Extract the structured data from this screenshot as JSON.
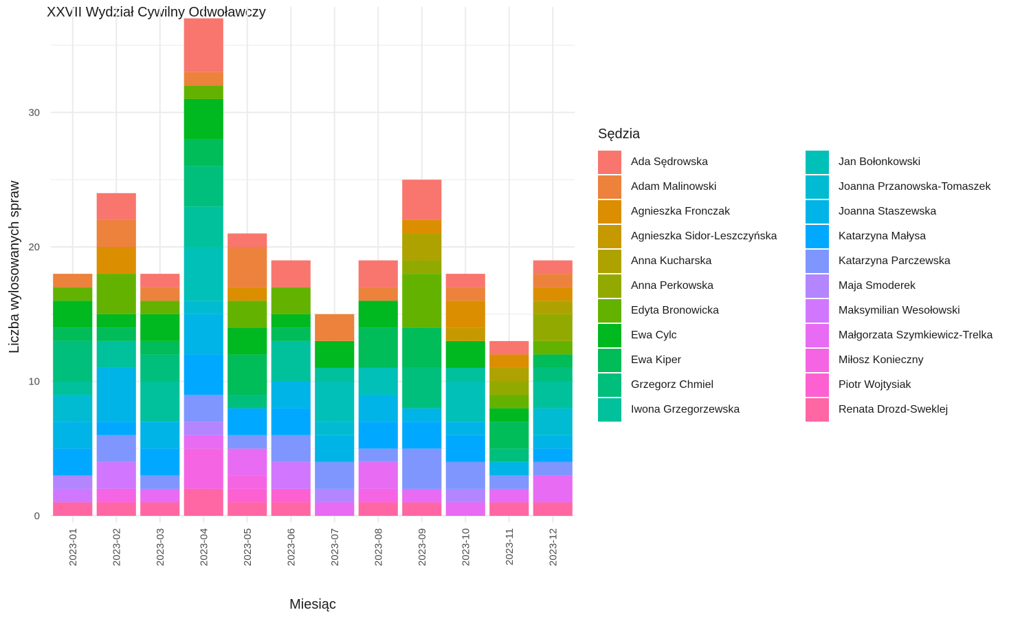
{
  "chart_data": {
    "type": "bar",
    "stacked": true,
    "title": "XXVII Wydział Cywilny Odwoławczy",
    "xlabel": "Miesiąc",
    "ylabel": "Liczba wylosowanych spraw",
    "ylim": [
      0,
      37
    ],
    "yticks": [
      0,
      10,
      20,
      30
    ],
    "grid": true,
    "legend_title": "Sędzia",
    "legend_position": "right",
    "categories": [
      "2023-01",
      "2023-02",
      "2023-03",
      "2023-04",
      "2023-05",
      "2023-06",
      "2023-07",
      "2023-08",
      "2023-09",
      "2023-10",
      "2023-11",
      "2023-12"
    ],
    "series": [
      {
        "name": "Ada Sędrowska",
        "color": "#F8766D",
        "values": [
          0,
          2,
          1,
          4,
          1,
          2,
          0,
          2,
          3,
          1,
          1,
          1
        ]
      },
      {
        "name": "Adam Malinowski",
        "color": "#EC823C",
        "values": [
          1,
          2,
          1,
          1,
          3,
          0,
          2,
          1,
          0,
          1,
          0,
          1
        ]
      },
      {
        "name": "Agnieszka Fronczak",
        "color": "#DB8E00",
        "values": [
          0,
          2,
          0,
          0,
          1,
          0,
          0,
          0,
          1,
          2,
          1,
          1
        ]
      },
      {
        "name": "Agnieszka Sidor-Leszczyńska",
        "color": "#C69900",
        "values": [
          0,
          0,
          0,
          0,
          0,
          0,
          0,
          0,
          0,
          1,
          0,
          0
        ]
      },
      {
        "name": "Anna Kucharska",
        "color": "#AEA200",
        "values": [
          0,
          0,
          0,
          0,
          0,
          0,
          0,
          0,
          2,
          0,
          1,
          1
        ]
      },
      {
        "name": "Anna Perkowska",
        "color": "#92AA00",
        "values": [
          0,
          0,
          0,
          0,
          0,
          0,
          0,
          0,
          1,
          0,
          1,
          2
        ]
      },
      {
        "name": "Edyta Bronowicka",
        "color": "#64B200",
        "values": [
          1,
          3,
          1,
          1,
          2,
          2,
          0,
          0,
          4,
          0,
          1,
          1
        ]
      },
      {
        "name": "Ewa Cylc",
        "color": "#00B81F",
        "values": [
          2,
          1,
          2,
          3,
          2,
          1,
          2,
          2,
          0,
          2,
          1,
          0
        ]
      },
      {
        "name": "Ewa Kiper",
        "color": "#00BC59",
        "values": [
          1,
          1,
          1,
          2,
          3,
          1,
          0,
          3,
          3,
          0,
          2,
          1
        ]
      },
      {
        "name": "Grzegorz Chmiel",
        "color": "#00BF7D",
        "values": [
          3,
          0,
          2,
          3,
          1,
          0,
          0,
          0,
          3,
          0,
          1,
          1
        ]
      },
      {
        "name": "Iwona Grzegorzewska",
        "color": "#00C19C",
        "values": [
          1,
          2,
          3,
          3,
          0,
          3,
          1,
          0,
          0,
          1,
          0,
          2
        ]
      },
      {
        "name": "Jan Bołonkowski",
        "color": "#00C0B8",
        "values": [
          0,
          0,
          0,
          4,
          0,
          0,
          3,
          2,
          0,
          3,
          0,
          0
        ]
      },
      {
        "name": "Joanna Przanowska-Tomaszek",
        "color": "#00BBD1",
        "values": [
          2,
          0,
          0,
          1,
          0,
          0,
          1,
          0,
          0,
          0,
          0,
          2
        ]
      },
      {
        "name": "Joanna Staszewska",
        "color": "#00B4E7",
        "values": [
          2,
          4,
          2,
          3,
          0,
          2,
          2,
          2,
          1,
          1,
          1,
          1
        ]
      },
      {
        "name": "Katarzyna Małysa",
        "color": "#00A9FF",
        "values": [
          2,
          1,
          2,
          3,
          2,
          2,
          0,
          2,
          2,
          2,
          0,
          1
        ]
      },
      {
        "name": "Katarzyna Parczewska",
        "color": "#7F96FF",
        "values": [
          0,
          2,
          1,
          2,
          1,
          2,
          2,
          1,
          3,
          2,
          1,
          1
        ]
      },
      {
        "name": "Maja Smoderek",
        "color": "#B385FF",
        "values": [
          1,
          0,
          0,
          1,
          0,
          0,
          1,
          0,
          0,
          1,
          0,
          0
        ]
      },
      {
        "name": "Maksymilian Wesołowski",
        "color": "#D177FF",
        "values": [
          1,
          2,
          0,
          0,
          0,
          2,
          0,
          0,
          0,
          0,
          0,
          0
        ]
      },
      {
        "name": "Małgorzata Szymkiewicz-Trelka",
        "color": "#E76BF3",
        "values": [
          0,
          0,
          1,
          1,
          2,
          0,
          1,
          2,
          1,
          1,
          1,
          2
        ]
      },
      {
        "name": "Miłosz Konieczny",
        "color": "#F564E3",
        "values": [
          0,
          1,
          0,
          3,
          1,
          0,
          0,
          1,
          0,
          0,
          0,
          0
        ]
      },
      {
        "name": "Piotr Wojtysiak",
        "color": "#FD61D1",
        "values": [
          0,
          0,
          0,
          0,
          1,
          1,
          0,
          0,
          0,
          0,
          0,
          0
        ]
      },
      {
        "name": "Renata Drozd-Sweklej",
        "color": "#FF67A4",
        "values": [
          1,
          1,
          1,
          2,
          1,
          1,
          0,
          1,
          1,
          0,
          1,
          1
        ]
      }
    ]
  }
}
